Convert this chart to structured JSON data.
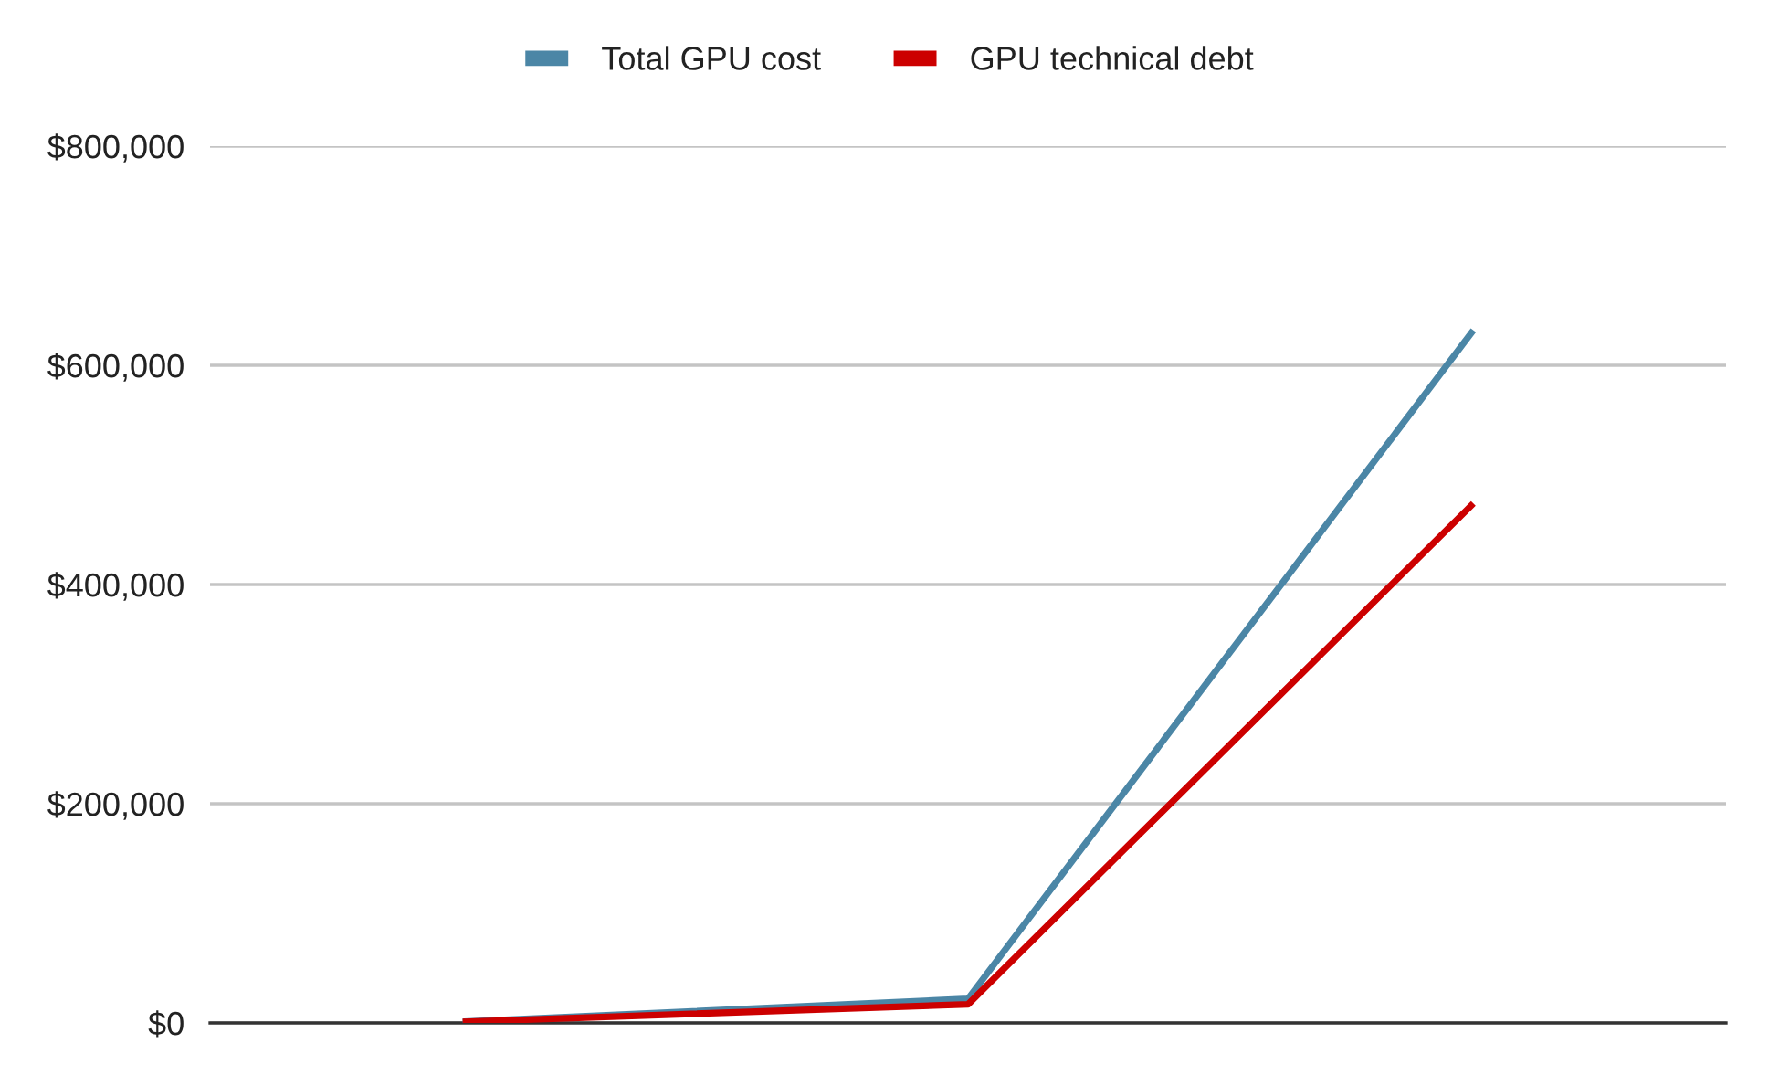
{
  "chart_data": {
    "type": "line",
    "categories": [
      null,
      null,
      null
    ],
    "series": [
      {
        "name": "Total GPU cost",
        "color": "#4b86a6",
        "values": [
          1000,
          22000,
          632000
        ]
      },
      {
        "name": "GPU technical debt",
        "color": "#cc0000",
        "values": [
          1000,
          17000,
          474000
        ]
      }
    ],
    "ylim": [
      0,
      800000
    ],
    "yticks": [
      {
        "value": 0,
        "label": "$0"
      },
      {
        "value": 200000,
        "label": "$200,000"
      },
      {
        "value": 400000,
        "label": "$400,000"
      },
      {
        "value": 600000,
        "label": "$600,000"
      },
      {
        "value": 800000,
        "label": "$800,000"
      }
    ],
    "grid": "y",
    "legend": "top",
    "marker": "none",
    "line_style": "solid",
    "tick_labels": "y"
  }
}
